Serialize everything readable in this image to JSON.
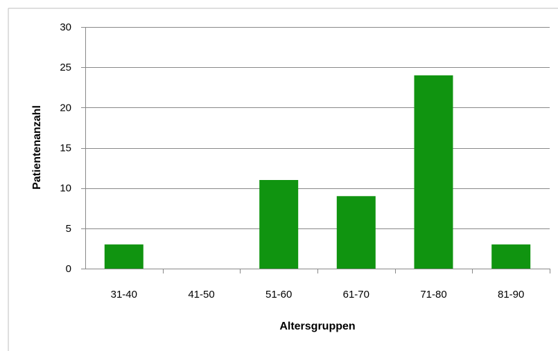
{
  "chart_data": {
    "type": "bar",
    "title": "",
    "xlabel": "Altersgruppen",
    "ylabel": "Patientenanzahl",
    "categories": [
      "31-40",
      "41-50",
      "51-60",
      "61-70",
      "71-80",
      "81-90"
    ],
    "values": [
      3,
      0,
      11,
      9,
      24,
      3
    ],
    "ylim": [
      0,
      30
    ],
    "yticks": [
      0,
      5,
      10,
      15,
      20,
      25,
      30
    ],
    "grid": true,
    "legend": "none",
    "bar_color": "#109410",
    "gridline_color": "#888888",
    "axis_color": "#888888",
    "frame_color": "#bcbcbc"
  }
}
